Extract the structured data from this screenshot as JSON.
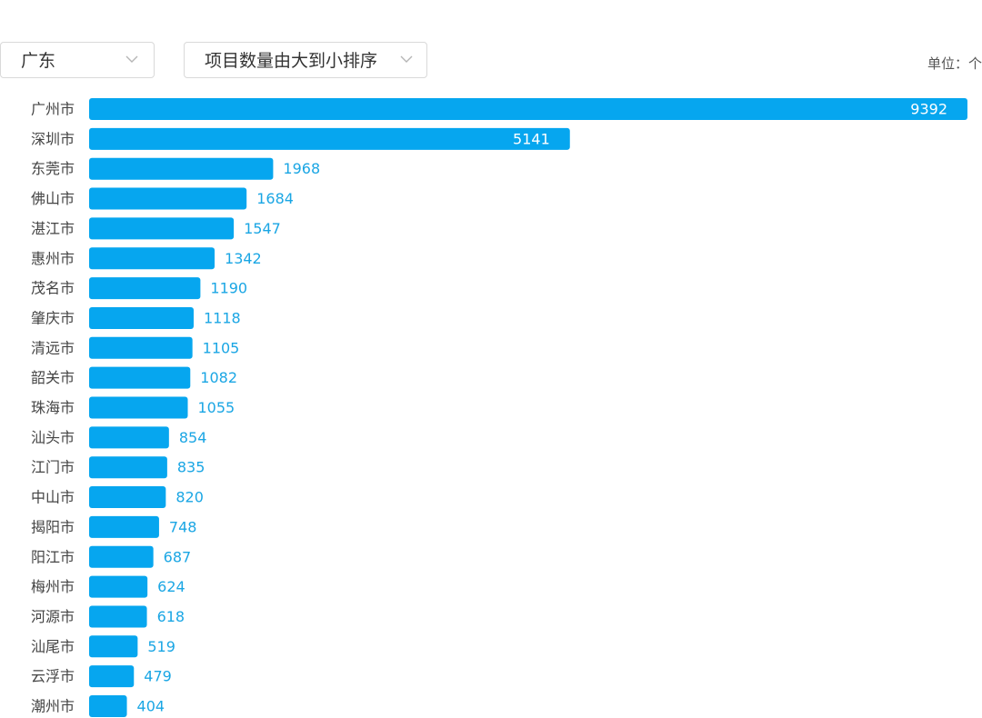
{
  "controls": {
    "province": "广东",
    "sort": "项目数量由大到小排序",
    "unit": "单位：个"
  },
  "colors": {
    "bar": "#06a6ef",
    "value_label": "#1aa6e4",
    "value_label_inside": "#ffffff",
    "category_label": "#444444"
  },
  "icons": {
    "dropdown": "chevron-down-icon"
  },
  "chart_data": {
    "type": "bar",
    "orientation": "horizontal",
    "categories": [
      "广州市",
      "深圳市",
      "东莞市",
      "佛山市",
      "湛江市",
      "惠州市",
      "茂名市",
      "肇庆市",
      "清远市",
      "韶关市",
      "珠海市",
      "汕头市",
      "江门市",
      "中山市",
      "揭阳市",
      "阳江市",
      "梅州市",
      "河源市",
      "汕尾市",
      "云浮市",
      "潮州市"
    ],
    "values": [
      9392,
      5141,
      1968,
      1684,
      1547,
      1342,
      1190,
      1118,
      1105,
      1082,
      1055,
      854,
      835,
      820,
      748,
      687,
      624,
      618,
      519,
      479,
      404
    ],
    "xlim": [
      0,
      9392
    ],
    "grid": false,
    "legend": "none",
    "title": "",
    "xlabel": "",
    "ylabel": ""
  }
}
